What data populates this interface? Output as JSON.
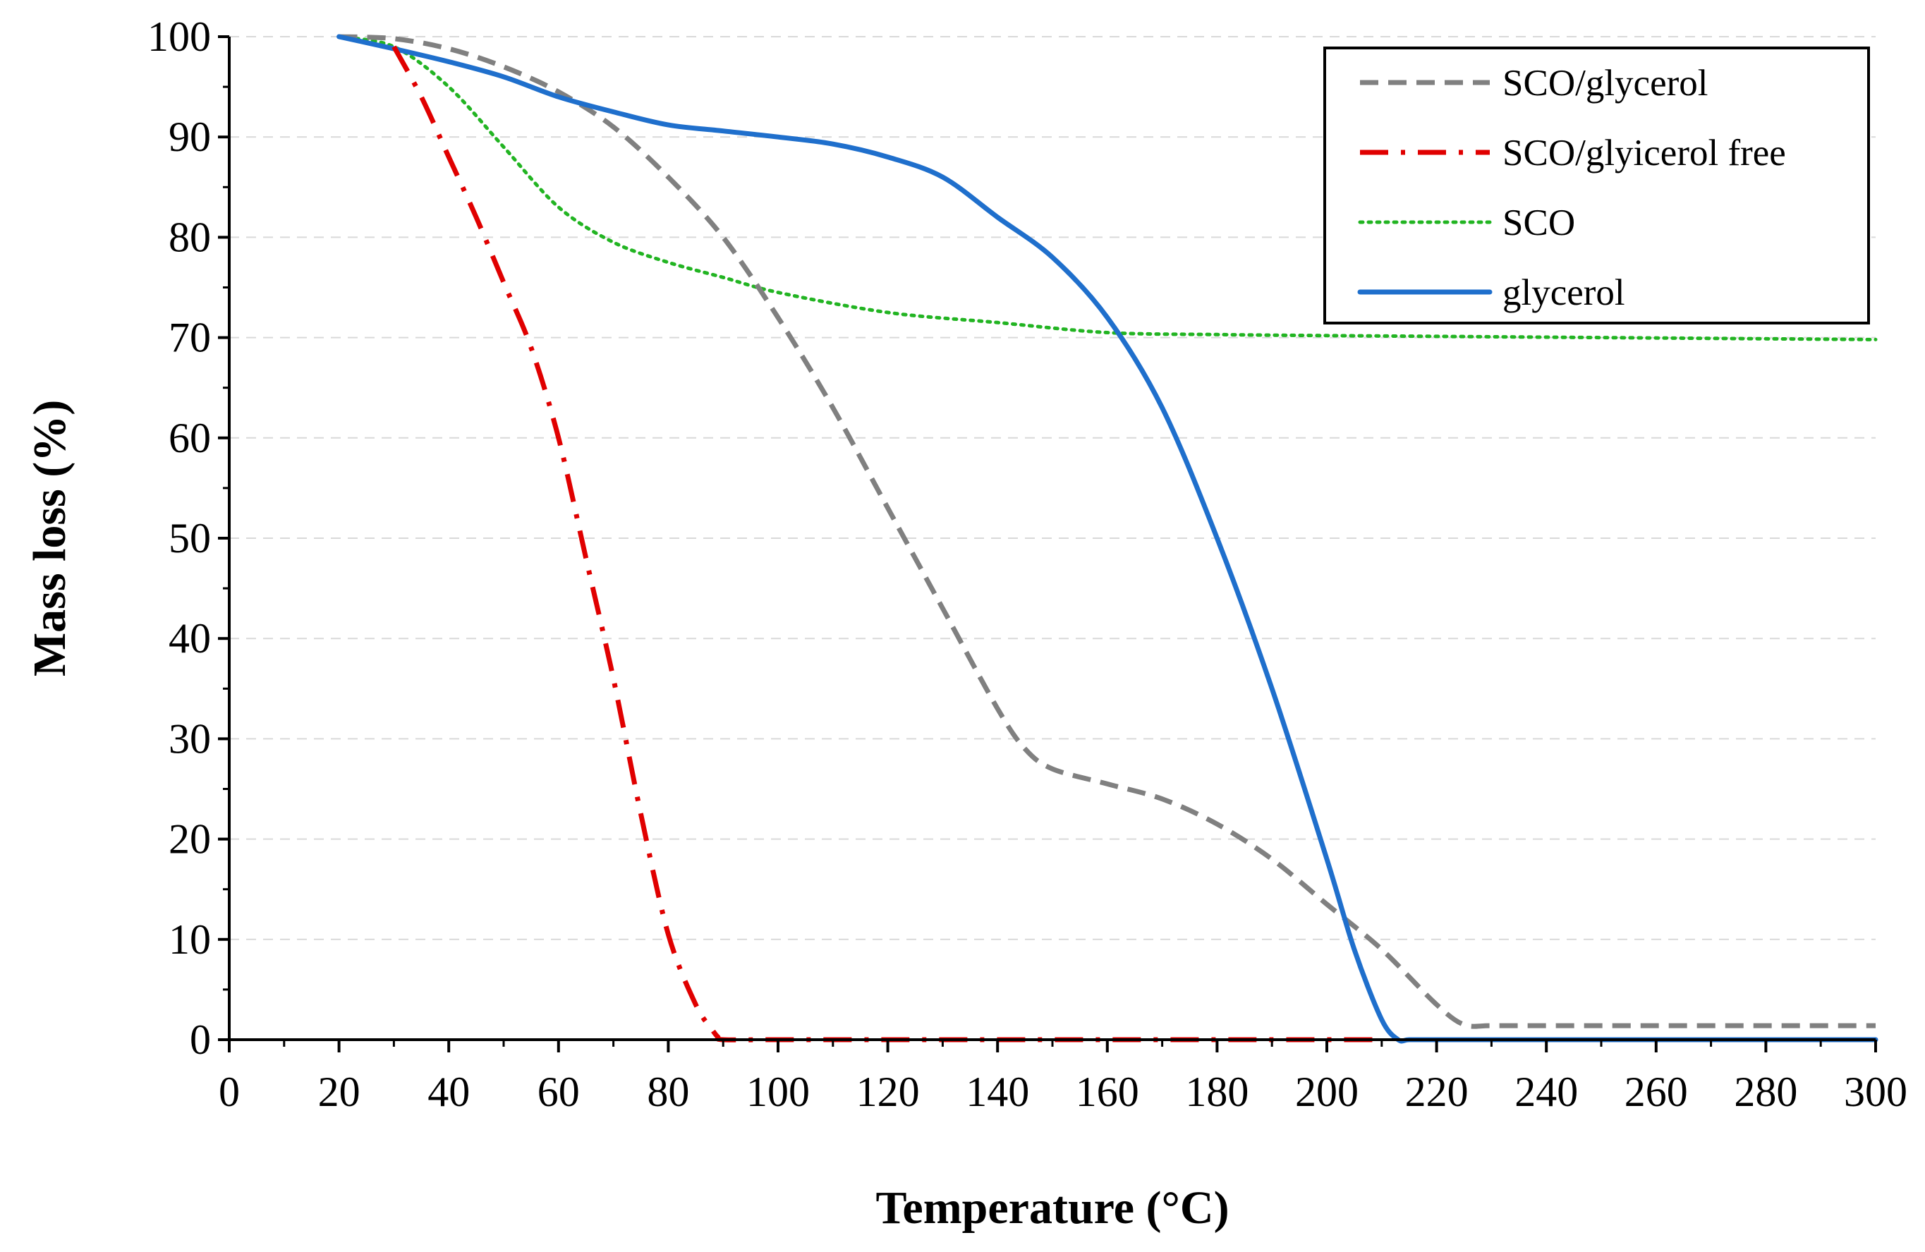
{
  "chart_data": {
    "type": "line",
    "title": "",
    "xlabel": "Temperature (°C)",
    "ylabel": "Mass loss (%)",
    "xlim": [
      0,
      300
    ],
    "ylim": [
      0,
      100
    ],
    "x_ticks": [
      0,
      20,
      40,
      60,
      80,
      100,
      120,
      140,
      160,
      180,
      200,
      220,
      240,
      260,
      280,
      300
    ],
    "y_ticks": [
      0,
      10,
      20,
      30,
      40,
      50,
      60,
      70,
      80,
      90,
      100
    ],
    "x_tick_labels": [
      "0",
      "20",
      "40",
      "60",
      "80",
      "100",
      "120",
      "140",
      "160",
      "180",
      "200",
      "220",
      "240",
      "260",
      "280",
      "300"
    ],
    "y_tick_labels": [
      "0",
      "10",
      "20",
      "30",
      "40",
      "50",
      "60",
      "70",
      "80",
      "90",
      "100"
    ],
    "grid": "horizontal dashed",
    "legend_position": "top-right",
    "series": [
      {
        "name": "SCO/glycerol",
        "color": "#808080",
        "style": "dashed",
        "x": [
          20,
          30,
          40,
          50,
          60,
          70,
          80,
          90,
          100,
          110,
          120,
          130,
          140,
          145,
          150,
          160,
          170,
          180,
          190,
          200,
          210,
          220,
          225,
          230,
          240,
          260,
          280,
          300
        ],
        "y": [
          100,
          99.8,
          98.8,
          97,
          94.5,
          91,
          86,
          80,
          72,
          63,
          53,
          43,
          33,
          29,
          27,
          25.5,
          24,
          21.5,
          18,
          13.5,
          9,
          3.5,
          1.5,
          1.4,
          1.4,
          1.4,
          1.4,
          1.4
        ]
      },
      {
        "name": "SCO/glyicerol free",
        "color": "#e00000",
        "style": "dash-dot",
        "x": [
          30,
          35,
          40,
          45,
          50,
          55,
          60,
          65,
          70,
          75,
          80,
          85,
          88,
          89,
          90,
          100,
          120,
          140,
          160,
          180,
          200,
          210
        ],
        "y": [
          99,
          94,
          88,
          82,
          75.5,
          69,
          60,
          48,
          36,
          22.5,
          10.5,
          3.5,
          1,
          0.3,
          0,
          0,
          0,
          0,
          0,
          0,
          0,
          0
        ]
      },
      {
        "name": "SCO",
        "color": "#22b422",
        "style": "dotted",
        "x": [
          20,
          30,
          40,
          50,
          60,
          70,
          80,
          90,
          100,
          120,
          140,
          160,
          180,
          200,
          250,
          300
        ],
        "y": [
          100,
          99,
          95,
          89,
          83,
          79.5,
          77.5,
          76,
          74.5,
          72.5,
          71.5,
          70.5,
          70.3,
          70.2,
          70,
          69.8
        ]
      },
      {
        "name": "glycerol",
        "color": "#1f6fcc",
        "style": "solid",
        "x": [
          20,
          30,
          40,
          50,
          60,
          70,
          80,
          90,
          100,
          110,
          120,
          130,
          140,
          150,
          160,
          170,
          180,
          190,
          200,
          205,
          210,
          213,
          215,
          220,
          250,
          300
        ],
        "y": [
          100,
          98.8,
          97.5,
          96,
          94,
          92.5,
          91.2,
          90.6,
          90,
          89.3,
          88,
          86,
          82,
          78,
          72,
          63,
          50,
          35,
          18,
          9,
          2,
          0,
          0,
          0,
          0,
          0
        ]
      }
    ]
  }
}
